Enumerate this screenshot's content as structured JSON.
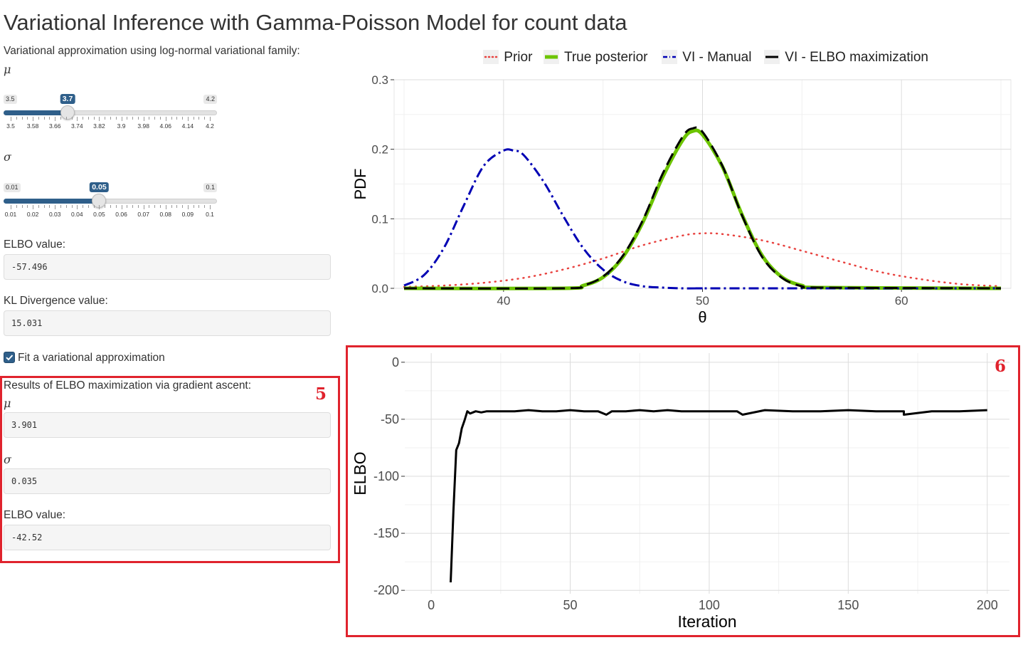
{
  "title": "Variational Inference with Gamma-Poisson Model for count data",
  "sidebar": {
    "subtitle": "Variational approximation using log-normal variational family:",
    "mu_symbol": "μ",
    "sigma_symbol": "σ",
    "mu_slider": {
      "min_label": "3.5",
      "max_label": "4.2",
      "value_label": "3.7",
      "min": 3.5,
      "max": 4.2,
      "value": 3.7,
      "tick_labels": [
        "3.5",
        "3.58",
        "3.66",
        "3.74",
        "3.82",
        "3.9",
        "3.98",
        "4.06",
        "4.14",
        "4.2"
      ]
    },
    "sigma_slider": {
      "min_label": "0.01",
      "max_label": "0.1",
      "value_label": "0.05",
      "min": 0.01,
      "max": 0.1,
      "value": 0.05,
      "tick_labels": [
        "0.01",
        "0.02",
        "0.03",
        "0.04",
        "0.05",
        "0.06",
        "0.07",
        "0.08",
        "0.09",
        "0.1"
      ]
    },
    "elbo_label": "ELBO value:",
    "elbo_value": "-57.496",
    "kl_label": "KL Divergence value:",
    "kl_value": "15.031",
    "fit_label": "Fit a variational approximation",
    "fit_checked": true,
    "results": {
      "title": "Results of ELBO maximization via gradient ascent:",
      "mu_symbol": "μ",
      "mu_value": "3.901",
      "sigma_symbol": "σ",
      "sigma_value": "0.035",
      "elbo_label": "ELBO value:",
      "elbo_value": "-42.52"
    },
    "annotation": "5"
  },
  "legend": {
    "prior": "Prior",
    "true_posterior": "True posterior",
    "vi_manual": "VI - Manual",
    "vi_elbo": "VI - ELBO maximization"
  },
  "colors": {
    "accent": "#2f5f8a",
    "prior": "#e8413e",
    "posterior": "#6cc400",
    "manual": "#0000b4",
    "elbo": "#000000",
    "annotation": "#e0232d"
  },
  "chart_data": [
    {
      "type": "line",
      "xlabel": "θ",
      "ylabel": "PDF",
      "xlim": [
        34.5,
        65.5
      ],
      "ylim": [
        0,
        0.3
      ],
      "x_ticks": [
        "40",
        "50",
        "60"
      ],
      "y_ticks": [
        "0.0",
        "0.1",
        "0.2",
        "0.3"
      ],
      "series": [
        {
          "name": "Prior",
          "style": "dotted",
          "x": [
            35,
            37,
            39,
            41,
            43,
            45,
            47,
            49,
            50,
            51,
            53,
            55,
            57,
            59,
            61,
            63,
            65
          ],
          "y": [
            0.002,
            0.004,
            0.008,
            0.015,
            0.027,
            0.043,
            0.062,
            0.076,
            0.079,
            0.078,
            0.069,
            0.054,
            0.038,
            0.023,
            0.013,
            0.006,
            0.003
          ]
        },
        {
          "name": "True posterior",
          "style": "thick-dashed",
          "x": [
            35,
            43,
            44,
            45,
            46,
            47,
            48,
            49,
            49.5,
            50,
            51,
            52,
            53,
            54,
            55,
            56,
            65
          ],
          "y": [
            0,
            0,
            0.004,
            0.016,
            0.045,
            0.095,
            0.16,
            0.213,
            0.226,
            0.221,
            0.175,
            0.105,
            0.047,
            0.016,
            0.004,
            0.001,
            0
          ]
        },
        {
          "name": "VI - Manual",
          "style": "dash-dot",
          "x": [
            35,
            36,
            37,
            38,
            39,
            40,
            40.5,
            41,
            42,
            43,
            44,
            45,
            46,
            47,
            48,
            49,
            50,
            51,
            65
          ],
          "y": [
            0.004,
            0.019,
            0.058,
            0.119,
            0.176,
            0.198,
            0.198,
            0.192,
            0.154,
            0.104,
            0.058,
            0.027,
            0.01,
            0.003,
            0.001,
            0,
            0,
            0,
            0
          ]
        },
        {
          "name": "VI - ELBO maximization",
          "style": "dashed",
          "x": [
            35,
            43,
            44,
            45,
            46,
            47,
            48,
            49,
            49.5,
            50,
            51,
            52,
            53,
            54,
            55,
            56,
            65
          ],
          "y": [
            0,
            0,
            0.004,
            0.017,
            0.047,
            0.098,
            0.165,
            0.218,
            0.23,
            0.225,
            0.176,
            0.104,
            0.045,
            0.015,
            0.003,
            0.001,
            0
          ]
        }
      ]
    },
    {
      "type": "line",
      "xlabel": "Iteration",
      "ylabel": "ELBO",
      "xlim": [
        -9.5,
        208
      ],
      "ylim": [
        -203,
        8
      ],
      "x_ticks": [
        "0",
        "50",
        "100",
        "150",
        "200"
      ],
      "y_ticks": [
        "0",
        "-50",
        "-100",
        "-150",
        "-200"
      ],
      "series": [
        {
          "name": "ELBO",
          "x": [
            7,
            8,
            9,
            10,
            11,
            12,
            13,
            14,
            15,
            16,
            18,
            20,
            25,
            30,
            35,
            40,
            45,
            50,
            55,
            60,
            63,
            65,
            70,
            75,
            80,
            85,
            90,
            95,
            100,
            110,
            112,
            120,
            130,
            140,
            150,
            160,
            170,
            170,
            180,
            190,
            200
          ],
          "y": [
            -193,
            -130,
            -77,
            -71,
            -58,
            -51,
            -43,
            -45,
            -44,
            -43,
            -44,
            -43,
            -43,
            -43,
            -42,
            -43,
            -43,
            -42,
            -43,
            -43,
            -46,
            -43,
            -43,
            -42,
            -43,
            -42,
            -43,
            -43,
            -43,
            -43,
            -46,
            -42,
            -43,
            -43,
            -42,
            -43,
            -43,
            -46,
            -43,
            -43,
            -42
          ]
        }
      ]
    }
  ],
  "annotation_chart": "6"
}
